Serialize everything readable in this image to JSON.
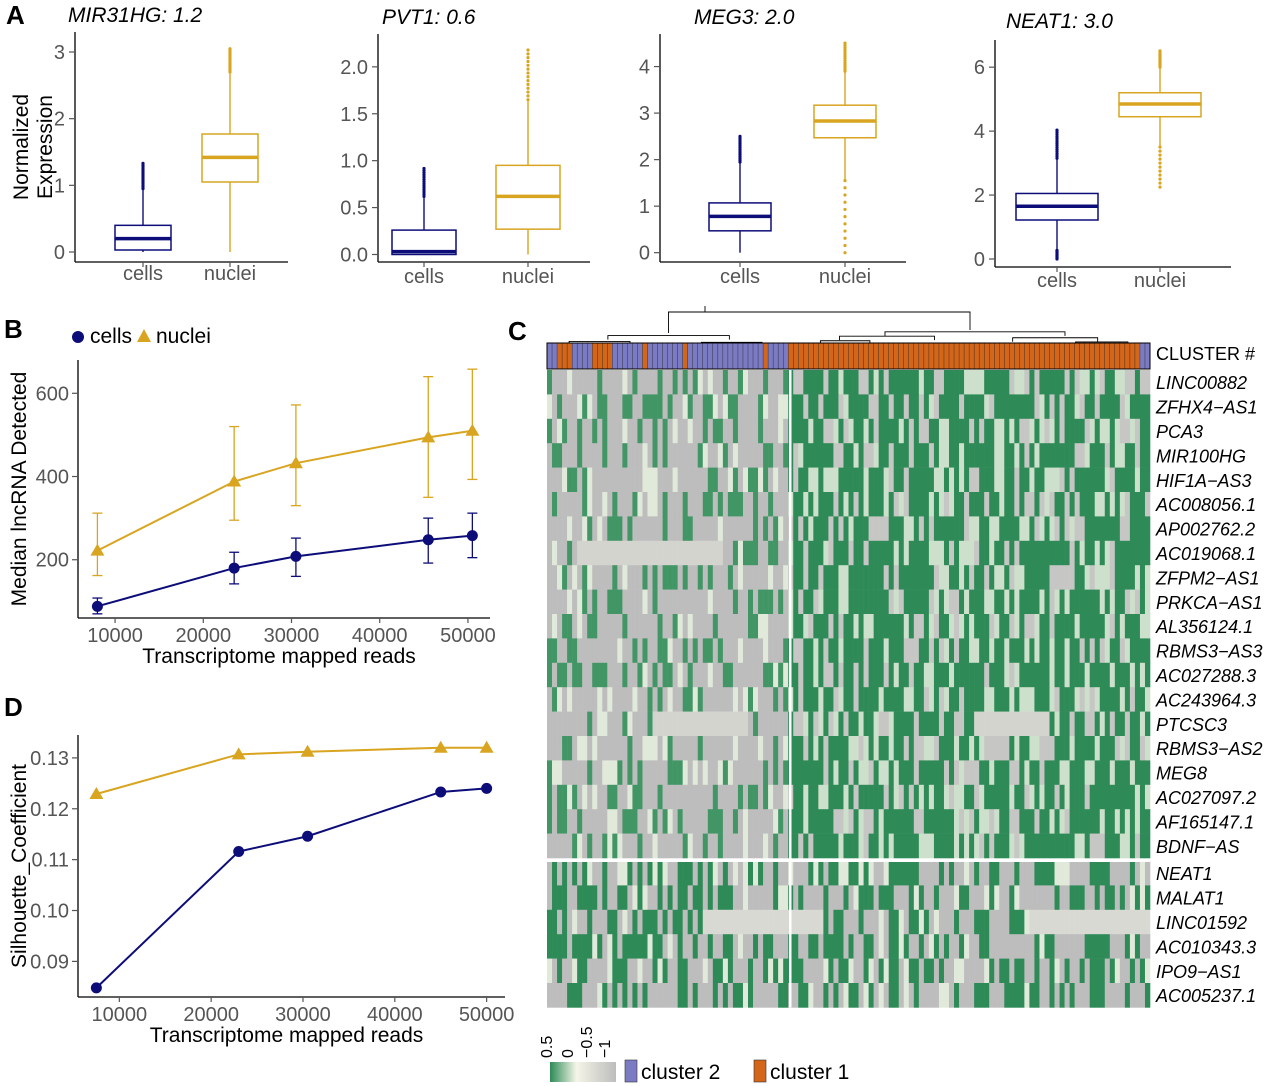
{
  "colors": {
    "cells": "#0d0d7a",
    "nuclei": "#d9a520",
    "cluster_2": "#7b7bc4",
    "cluster_1": "#d4661a",
    "heat_high": "#2e8b57",
    "heat_mid": "#f5f5e8",
    "heat_low": "#bdbdbd"
  },
  "chart_data": [
    {
      "panel": "A",
      "type": "box",
      "title": "MIR31HG: 1.2",
      "ylabel": "Normalized Expression",
      "ylim": [
        -0.15,
        3.3
      ],
      "yticks": [
        0,
        1,
        2,
        3
      ],
      "categories": [
        "cells",
        "nuclei"
      ],
      "boxes": [
        {
          "name": "cells",
          "whisker_low": 0.0,
          "q1": 0.03,
          "median": 0.2,
          "q3": 0.4,
          "whisker_high": 0.95,
          "outlier_max": 1.33
        },
        {
          "name": "nuclei",
          "whisker_low": 0.0,
          "q1": 1.05,
          "median": 1.42,
          "q3": 1.77,
          "whisker_high": 2.7,
          "outlier_max": 3.05
        }
      ]
    },
    {
      "panel": "A",
      "type": "box",
      "title": "PVT1: 0.6",
      "ylabel": "",
      "ylim": [
        -0.08,
        2.35
      ],
      "yticks": [
        0.0,
        0.5,
        1.0,
        1.5,
        2.0
      ],
      "ytick_labels": [
        "0.0",
        "0.5",
        "1.0",
        "1.5",
        "2.0"
      ],
      "categories": [
        "cells",
        "nuclei"
      ],
      "boxes": [
        {
          "name": "cells",
          "whisker_low": 0.0,
          "q1": 0.0,
          "median": 0.03,
          "q3": 0.26,
          "whisker_high": 0.62,
          "outlier_max": 0.94
        },
        {
          "name": "nuclei",
          "whisker_low": 0.0,
          "q1": 0.27,
          "median": 0.62,
          "q3": 0.95,
          "whisker_high": 1.65,
          "outlier_max": 2.22
        }
      ]
    },
    {
      "panel": "A",
      "type": "box",
      "title": "MEG3: 2.0",
      "ylabel": "",
      "ylim": [
        -0.2,
        4.7
      ],
      "yticks": [
        0,
        1,
        2,
        3,
        4
      ],
      "categories": [
        "cells",
        "nuclei"
      ],
      "boxes": [
        {
          "name": "cells",
          "whisker_low": 0.0,
          "q1": 0.47,
          "median": 0.78,
          "q3": 1.07,
          "whisker_high": 1.95,
          "outlier_max": 2.5
        },
        {
          "name": "nuclei",
          "whisker_low": 1.55,
          "q1": 2.47,
          "median": 2.83,
          "q3": 3.17,
          "whisker_high": 3.9,
          "outlier_max": 4.55,
          "outlier_min": 0.0
        }
      ]
    },
    {
      "panel": "A",
      "type": "box",
      "title": "NEAT1: 3.0",
      "ylabel": "",
      "ylim": [
        -0.25,
        6.85
      ],
      "yticks": [
        0,
        2,
        4,
        6
      ],
      "categories": [
        "cells",
        "nuclei"
      ],
      "boxes": [
        {
          "name": "cells",
          "whisker_low": 0.3,
          "q1": 1.22,
          "median": 1.65,
          "q3": 2.05,
          "whisker_high": 3.15,
          "outlier_max": 4.1,
          "outlier_min": 0.0
        },
        {
          "name": "nuclei",
          "whisker_low": 3.5,
          "q1": 4.45,
          "median": 4.85,
          "q3": 5.2,
          "whisker_high": 6.0,
          "outlier_max": 6.55,
          "outlier_min": 2.25
        }
      ]
    },
    {
      "panel": "B",
      "type": "line",
      "xlabel": "Transcriptome mapped reads",
      "ylabel": "Median lncRNA Detected",
      "xlim": [
        5800,
        52500
      ],
      "ylim": [
        60,
        680
      ],
      "xticks": [
        10000,
        20000,
        30000,
        40000,
        50000
      ],
      "yticks": [
        200,
        400,
        600
      ],
      "legend_position": "top-left",
      "series": [
        {
          "name": "nuclei",
          "marker": "triangle",
          "x": [
            8000,
            23500,
            30500,
            45500,
            50500
          ],
          "y": [
            222,
            388,
            432,
            494,
            510
          ],
          "err_low": [
            162,
            295,
            330,
            350,
            393
          ],
          "err_high": [
            312,
            520,
            572,
            640,
            658
          ]
        },
        {
          "name": "cells",
          "marker": "circle",
          "x": [
            8000,
            23500,
            30500,
            45500,
            50500
          ],
          "y": [
            88,
            180,
            208,
            248,
            258
          ],
          "err_low": [
            70,
            142,
            160,
            192,
            205
          ],
          "err_high": [
            108,
            218,
            252,
            300,
            312
          ]
        }
      ]
    },
    {
      "panel": "C",
      "type": "heatmap",
      "annotation_label": "CLUSTER #",
      "genes_top": [
        "LINC00882",
        "ZFHX4−AS1",
        "PCA3",
        "MIR100HG",
        "HIF1A−AS3",
        "AC008056.1",
        "AP002762.2",
        "AC019068.1",
        "ZFPM2−AS1",
        "PRKCA−AS1",
        "AL356124.1",
        "RBMS3−AS3",
        "AC027288.3",
        "AC243964.3",
        "PTCSC3",
        "RBMS3−AS2",
        "MEG8",
        "AC027097.2",
        "AF165147.1",
        "BDNF−AS"
      ],
      "genes_bottom": [
        "NEAT1",
        "MALAT1",
        "LINC01592",
        "AC010343.3",
        "IPO9−AS1",
        "AC005237.1"
      ],
      "scale_ticks": [
        "0.5",
        "0",
        "−0.5",
        "−1"
      ],
      "legend": [
        {
          "label": "cluster 2",
          "color": "#7b7bc4"
        },
        {
          "label": "cluster 1",
          "color": "#d4661a"
        }
      ]
    },
    {
      "panel": "D",
      "type": "line",
      "xlabel": "Transcriptome mapped reads",
      "ylabel": "Silhouette_Coefficient",
      "xlim": [
        5500,
        52000
      ],
      "ylim": [
        0.083,
        0.1345
      ],
      "xticks": [
        10000,
        20000,
        30000,
        40000,
        50000
      ],
      "yticks": [
        0.09,
        0.1,
        0.11,
        0.12,
        0.13
      ],
      "ytick_labels": [
        "0.09",
        "0.10",
        "0.11",
        "0.12",
        "0.13"
      ],
      "series": [
        {
          "name": "nuclei",
          "marker": "triangle",
          "x": [
            7500,
            23000,
            30500,
            45000,
            50000
          ],
          "y": [
            0.1229,
            0.1307,
            0.1312,
            0.132,
            0.132
          ]
        },
        {
          "name": "cells",
          "marker": "circle",
          "x": [
            7500,
            23000,
            30500,
            45000,
            50000
          ],
          "y": [
            0.0848,
            0.1116,
            0.1146,
            0.1233,
            0.124
          ]
        }
      ]
    }
  ]
}
